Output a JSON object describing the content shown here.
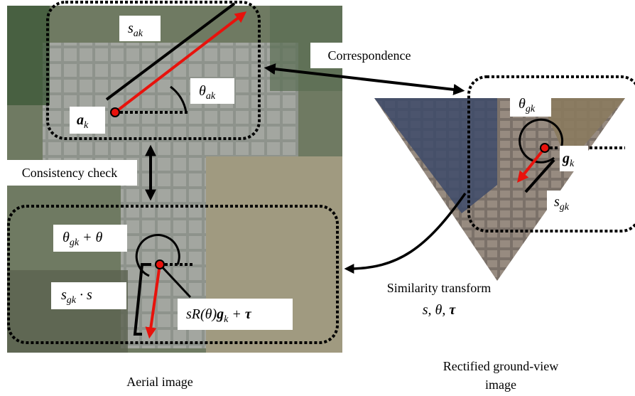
{
  "labels": {
    "s_ak": [
      {
        "t": "s"
      },
      {
        "sub": "ak"
      }
    ],
    "theta_ak": [
      {
        "t": "θ"
      },
      {
        "sub": "ak"
      }
    ],
    "a_k": [
      {
        "t": "a"
      },
      {
        "sub": "k"
      }
    ],
    "correspondence": "Correspondence",
    "theta_gk": [
      {
        "t": "θ"
      },
      {
        "sub": "gk"
      }
    ],
    "g_k": [
      {
        "t": "g"
      },
      {
        "sub": "k"
      }
    ],
    "s_gk": [
      {
        "t": "s"
      },
      {
        "sub": "gk"
      }
    ],
    "consistency": "Consistency check",
    "theta_sum": [
      {
        "t": "θ"
      },
      {
        "sub": "gk"
      },
      {
        "t": " + θ"
      }
    ],
    "s_prod": [
      {
        "t": "s"
      },
      {
        "sub": "gk"
      },
      {
        "t": " · s"
      }
    ],
    "transform_expr": [
      {
        "t": "sR(θ)"
      },
      {
        "b": "g"
      },
      {
        "sub": "k"
      },
      {
        "t": " + "
      },
      {
        "b": "τ"
      }
    ],
    "similarity": "Similarity transform",
    "params": [
      {
        "t": "s, θ, "
      },
      {
        "b": "τ"
      }
    ],
    "aerial_caption": "Aerial image",
    "ground_caption": [
      "Rectified ground-view",
      "image"
    ]
  }
}
